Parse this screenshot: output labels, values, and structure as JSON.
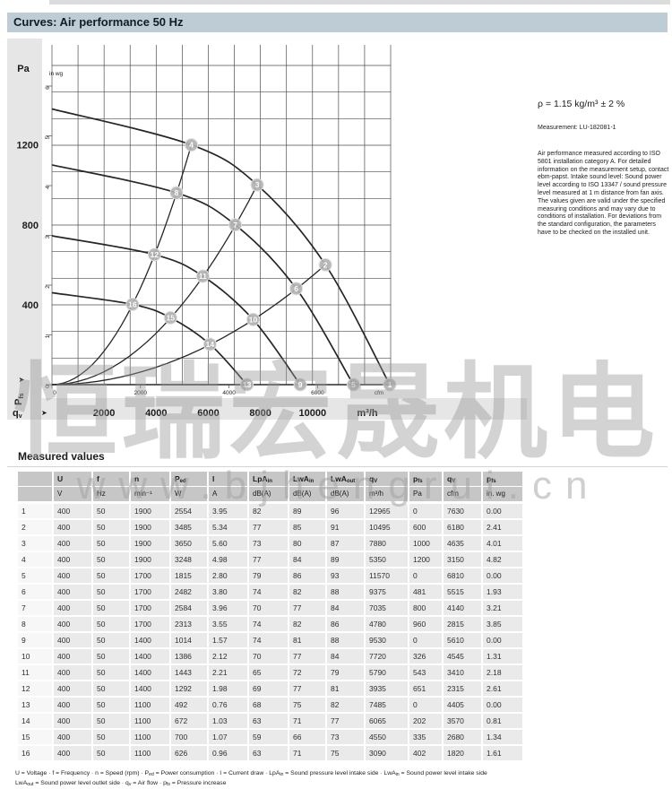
{
  "page": {
    "curves_title": "Curves: Air performance 50 Hz",
    "measured_values_title": "Measured values"
  },
  "notes": {
    "density": "ρ = 1.15 kg/m³ ± 2 %",
    "measurement": "Measurement: LU-182081-1",
    "paragraph": "Air performance measured according to ISO 5801 installation category A. For detailed information on the measurement setup, contact ebm-papst. Intake sound level: Sound power level according to ISO 13347 / sound pressure level measured at 1 m distance from fan axis. The values given are valid under the specified measuring conditions and may vary due to conditions of installation. For deviations from the standard configuration, the parameters have to be checked on the installed unit."
  },
  "chart_data": {
    "type": "line",
    "title": "Air performance 50 Hz",
    "x_axis": {
      "name": "qv",
      "unit_primary": "m³/h",
      "unit_secondary": "cfm",
      "ticks_m3h": [
        2000,
        4000,
        6000,
        8000,
        10000
      ],
      "ticks_cfm": [
        0,
        2000,
        4000,
        6000
      ],
      "range_m3h": [
        0,
        13000
      ]
    },
    "y_axis": {
      "name": "Pfs",
      "unit_primary": "Pa",
      "unit_secondary": "in wg",
      "ticks_pa": [
        400,
        800,
        1200
      ],
      "ticks_inwg": [
        0,
        1,
        2,
        3,
        4,
        5,
        6
      ],
      "range_pa": [
        0,
        1590
      ]
    },
    "series": [
      {
        "name": "fan-curve-1900-min-1",
        "points": [
          [
            0,
            1380
          ],
          [
            5350,
            1200
          ],
          [
            7880,
            1000
          ],
          [
            10495,
            600
          ],
          [
            12965,
            0
          ]
        ]
      },
      {
        "name": "fan-curve-1700-min-1",
        "points": [
          [
            0,
            1100
          ],
          [
            4780,
            960
          ],
          [
            7035,
            800
          ],
          [
            9375,
            481
          ],
          [
            11570,
            0
          ]
        ]
      },
      {
        "name": "fan-curve-1400-min-1",
        "points": [
          [
            0,
            745
          ],
          [
            3935,
            651
          ],
          [
            5790,
            543
          ],
          [
            7720,
            326
          ],
          [
            9530,
            0
          ]
        ]
      },
      {
        "name": "fan-curve-1100-min-1",
        "points": [
          [
            0,
            460
          ],
          [
            3090,
            402
          ],
          [
            4550,
            335
          ],
          [
            6065,
            202
          ],
          [
            7485,
            0
          ]
        ]
      }
    ],
    "system_curves": [
      {
        "point_ids": [
          16,
          12,
          8,
          4
        ]
      },
      {
        "point_ids": [
          15,
          11,
          7,
          3
        ]
      },
      {
        "point_ids": [
          14,
          10,
          6,
          2
        ]
      }
    ],
    "operating_points": [
      {
        "id": 1,
        "qv": 12965,
        "pfs": 0
      },
      {
        "id": 2,
        "qv": 10495,
        "pfs": 600
      },
      {
        "id": 3,
        "qv": 7880,
        "pfs": 1000
      },
      {
        "id": 4,
        "qv": 5350,
        "pfs": 1200
      },
      {
        "id": 5,
        "qv": 11570,
        "pfs": 0
      },
      {
        "id": 6,
        "qv": 9375,
        "pfs": 481
      },
      {
        "id": 7,
        "qv": 7035,
        "pfs": 800
      },
      {
        "id": 8,
        "qv": 4780,
        "pfs": 960
      },
      {
        "id": 9,
        "qv": 9530,
        "pfs": 0
      },
      {
        "id": 10,
        "qv": 7720,
        "pfs": 326
      },
      {
        "id": 11,
        "qv": 5790,
        "pfs": 543
      },
      {
        "id": 12,
        "qv": 3935,
        "pfs": 651
      },
      {
        "id": 13,
        "qv": 7485,
        "pfs": 0
      },
      {
        "id": 14,
        "qv": 6065,
        "pfs": 202
      },
      {
        "id": 15,
        "qv": 4550,
        "pfs": 335
      },
      {
        "id": 16,
        "qv": 3090,
        "pfs": 402
      }
    ]
  },
  "table": {
    "columns": [
      {
        "sym": "",
        "sub": "",
        "unit": ""
      },
      {
        "sym": "U",
        "sub": "",
        "unit": "V"
      },
      {
        "sym": "f",
        "sub": "",
        "unit": "Hz"
      },
      {
        "sym": "n",
        "sub": "",
        "unit": "min⁻¹"
      },
      {
        "sym": "P",
        "sub": "ed",
        "unit": "W"
      },
      {
        "sym": "I",
        "sub": "",
        "unit": "A"
      },
      {
        "sym": "LpA",
        "sub": "in",
        "unit": "dB(A)"
      },
      {
        "sym": "LwA",
        "sub": "in",
        "unit": "dB(A)"
      },
      {
        "sym": "LwA",
        "sub": "out",
        "unit": "dB(A)"
      },
      {
        "sym": "q",
        "sub": "V",
        "unit": "m³/h"
      },
      {
        "sym": "p",
        "sub": "fs",
        "unit": "Pa"
      },
      {
        "sym": "q",
        "sub": "V",
        "unit": "cfm"
      },
      {
        "sym": "p",
        "sub": "fs",
        "unit": "in. wg"
      }
    ],
    "rows": [
      [
        "1",
        "400",
        "50",
        "1900",
        "2554",
        "3.95",
        "82",
        "89",
        "96",
        "12965",
        "0",
        "7630",
        "0.00"
      ],
      [
        "2",
        "400",
        "50",
        "1900",
        "3485",
        "5.34",
        "77",
        "85",
        "91",
        "10495",
        "600",
        "6180",
        "2.41"
      ],
      [
        "3",
        "400",
        "50",
        "1900",
        "3650",
        "5.60",
        "73",
        "80",
        "87",
        "7880",
        "1000",
        "4635",
        "4.01"
      ],
      [
        "4",
        "400",
        "50",
        "1900",
        "3248",
        "4.98",
        "77",
        "84",
        "89",
        "5350",
        "1200",
        "3150",
        "4.82"
      ],
      [
        "5",
        "400",
        "50",
        "1700",
        "1815",
        "2.80",
        "79",
        "86",
        "93",
        "11570",
        "0",
        "6810",
        "0.00"
      ],
      [
        "6",
        "400",
        "50",
        "1700",
        "2482",
        "3.80",
        "74",
        "82",
        "88",
        "9375",
        "481",
        "5515",
        "1.93"
      ],
      [
        "7",
        "400",
        "50",
        "1700",
        "2584",
        "3.96",
        "70",
        "77",
        "84",
        "7035",
        "800",
        "4140",
        "3.21"
      ],
      [
        "8",
        "400",
        "50",
        "1700",
        "2313",
        "3.55",
        "74",
        "82",
        "86",
        "4780",
        "960",
        "2815",
        "3.85"
      ],
      [
        "9",
        "400",
        "50",
        "1400",
        "1014",
        "1.57",
        "74",
        "81",
        "88",
        "9530",
        "0",
        "5610",
        "0.00"
      ],
      [
        "10",
        "400",
        "50",
        "1400",
        "1386",
        "2.12",
        "70",
        "77",
        "84",
        "7720",
        "326",
        "4545",
        "1.31"
      ],
      [
        "11",
        "400",
        "50",
        "1400",
        "1443",
        "2.21",
        "65",
        "72",
        "79",
        "5790",
        "543",
        "3410",
        "2.18"
      ],
      [
        "12",
        "400",
        "50",
        "1400",
        "1292",
        "1.98",
        "69",
        "77",
        "81",
        "3935",
        "651",
        "2315",
        "2.61"
      ],
      [
        "13",
        "400",
        "50",
        "1100",
        "492",
        "0.76",
        "68",
        "75",
        "82",
        "7485",
        "0",
        "4405",
        "0.00"
      ],
      [
        "14",
        "400",
        "50",
        "1100",
        "672",
        "1.03",
        "63",
        "71",
        "77",
        "6065",
        "202",
        "3570",
        "0.81"
      ],
      [
        "15",
        "400",
        "50",
        "1100",
        "700",
        "1.07",
        "59",
        "66",
        "73",
        "4550",
        "335",
        "2680",
        "1.34"
      ],
      [
        "16",
        "400",
        "50",
        "1100",
        "626",
        "0.96",
        "63",
        "71",
        "75",
        "3090",
        "402",
        "1820",
        "1.61"
      ]
    ]
  },
  "legend": {
    "line1": [
      [
        "t",
        "U = Voltage · f = Frequency · n = Speed (rpm) · P"
      ],
      [
        "s",
        "ed"
      ],
      [
        "t",
        " = Power consumption · I = Current draw · LpA"
      ],
      [
        "s",
        "in"
      ],
      [
        "t",
        " = Sound pressure level intake side · LwA"
      ],
      [
        "s",
        "in"
      ],
      [
        "t",
        " = Sound power level intake side"
      ]
    ],
    "line2": [
      [
        "t",
        "LwA"
      ],
      [
        "s",
        "out"
      ],
      [
        "t",
        " = Sound power level outlet side · q"
      ],
      [
        "s",
        "v"
      ],
      [
        "t",
        " = Air flow · p"
      ],
      [
        "s",
        "fs"
      ],
      [
        "t",
        " = Pressure increase"
      ]
    ]
  },
  "watermark": {
    "company_cn": "恒瑞宏晟机电",
    "url": "www.bjhengrui.cn"
  }
}
